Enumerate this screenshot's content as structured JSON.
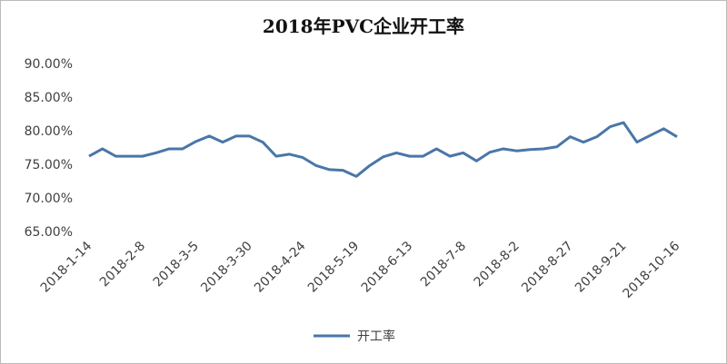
{
  "chart_data": {
    "type": "line",
    "title": "2018年PVC企业开工率",
    "categories": [
      "2018-1-14",
      null,
      null,
      null,
      "2018-2-8",
      null,
      null,
      null,
      "2018-3-5",
      null,
      null,
      null,
      "2018-3-30",
      null,
      null,
      null,
      "2018-4-24",
      null,
      null,
      null,
      "2018-5-19",
      null,
      null,
      null,
      "2018-6-13",
      null,
      null,
      null,
      "2018-7-8",
      null,
      null,
      null,
      "2018-8-2",
      null,
      null,
      null,
      "2018-8-27",
      null,
      null,
      null,
      "2018-9-21",
      null,
      null,
      null,
      "2018-10-16"
    ],
    "series": [
      {
        "name": "开工率",
        "color": "#4a76a8",
        "values": [
          76.2,
          77.3,
          76.2,
          76.2,
          76.2,
          76.7,
          77.3,
          77.3,
          78.4,
          79.2,
          78.3,
          79.2,
          79.2,
          78.3,
          76.2,
          76.5,
          76.0,
          74.8,
          74.2,
          74.1,
          73.2,
          74.8,
          76.1,
          76.7,
          76.2,
          76.2,
          77.3,
          76.2,
          76.7,
          75.5,
          76.8,
          77.3,
          77.0,
          77.2,
          77.3,
          77.6,
          79.1,
          78.3,
          79.1,
          80.6,
          81.2,
          78.3,
          79.3,
          80.3,
          79.1
        ]
      }
    ],
    "ylim": [
      65,
      90
    ],
    "yticks": [
      {
        "value": 65,
        "label": "65.00%"
      },
      {
        "value": 70,
        "label": "70.00%"
      },
      {
        "value": 75,
        "label": "75.00%"
      },
      {
        "value": 80,
        "label": "80.00%"
      },
      {
        "value": 85,
        "label": "85.00%"
      },
      {
        "value": 90,
        "label": "90.00%"
      }
    ],
    "legend": "bottom"
  }
}
